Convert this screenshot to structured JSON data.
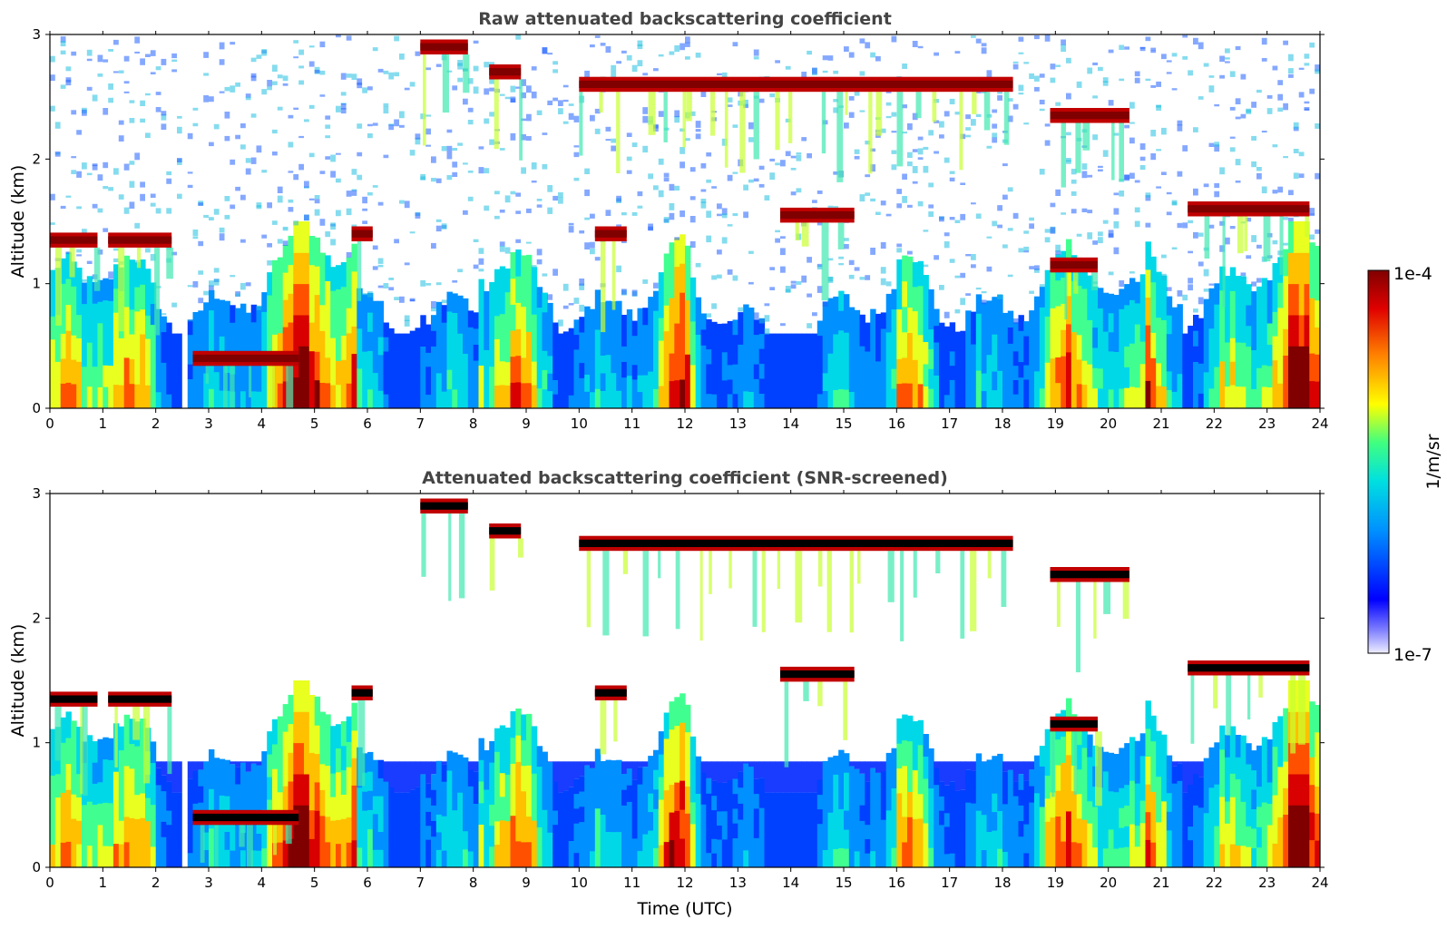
{
  "chart_data": [
    {
      "type": "heatmap",
      "title": "Raw attenuated backscattering coefficient",
      "xlabel": "",
      "ylabel": "Altitude (km)",
      "xlim": [
        0,
        24
      ],
      "ylim": [
        0,
        3
      ],
      "xticks": [
        0,
        1,
        2,
        3,
        4,
        5,
        6,
        7,
        8,
        9,
        10,
        11,
        12,
        13,
        14,
        15,
        16,
        17,
        18,
        19,
        20,
        21,
        22,
        23,
        24
      ],
      "yticks": [
        0,
        1,
        2,
        3
      ],
      "gap_hours": [
        2.5,
        2.6
      ],
      "cloud_layers": [
        {
          "t0": 0.0,
          "t1": 0.9,
          "alt": 1.35
        },
        {
          "t0": 1.1,
          "t1": 2.3,
          "alt": 1.35
        },
        {
          "t0": 2.7,
          "t1": 4.7,
          "alt": 0.4
        },
        {
          "t0": 5.7,
          "t1": 6.1,
          "alt": 1.4
        },
        {
          "t0": 7.0,
          "t1": 7.9,
          "alt": 2.9
        },
        {
          "t0": 8.3,
          "t1": 8.9,
          "alt": 2.7
        },
        {
          "t0": 10.0,
          "t1": 18.2,
          "alt": 2.6
        },
        {
          "t0": 10.3,
          "t1": 10.9,
          "alt": 1.4
        },
        {
          "t0": 13.8,
          "t1": 15.2,
          "alt": 1.55
        },
        {
          "t0": 18.9,
          "t1": 20.4,
          "alt": 2.35
        },
        {
          "t0": 18.9,
          "t1": 19.8,
          "alt": 1.15
        },
        {
          "t0": 21.5,
          "t1": 23.8,
          "alt": 1.6
        }
      ],
      "aerosol_layer_top_km": 0.6
    },
    {
      "type": "heatmap",
      "title": "Attenuated backscattering coefficient (SNR-screened)",
      "xlabel": "Time (UTC)",
      "ylabel": "Altitude (km)",
      "xlim": [
        0,
        24
      ],
      "ylim": [
        0,
        3
      ],
      "xticks": [
        0,
        1,
        2,
        3,
        4,
        5,
        6,
        7,
        8,
        9,
        10,
        11,
        12,
        13,
        14,
        15,
        16,
        17,
        18,
        19,
        20,
        21,
        22,
        23,
        24
      ],
      "yticks": [
        0,
        1,
        2,
        3
      ],
      "screened_above_km": 1.0
    }
  ],
  "colorbar": {
    "label": "1/m/sr",
    "max_label": "1e-4",
    "min_label": "1e-7",
    "colormap": [
      "#eeeeff",
      "#0000ff",
      "#00bfff",
      "#00ffbf",
      "#ffff00",
      "#ff8000",
      "#e00000",
      "#800000"
    ]
  }
}
